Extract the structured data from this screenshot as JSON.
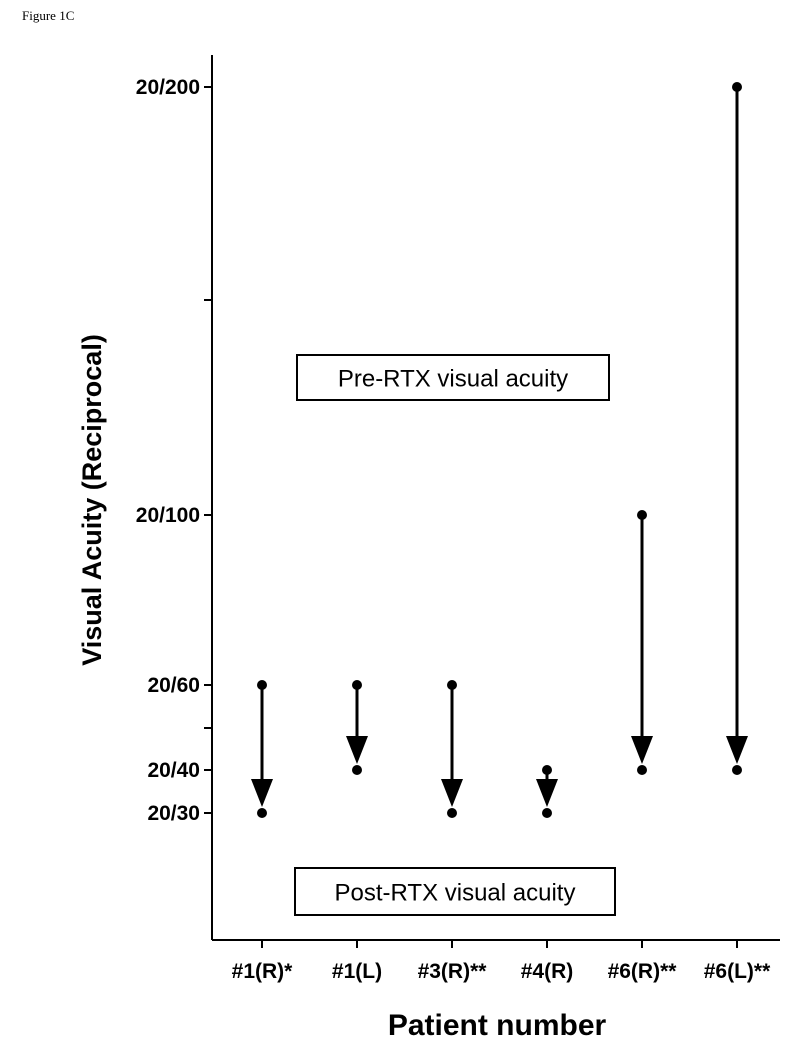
{
  "figure_label": "Figure 1C",
  "chart_data": {
    "type": "scatter",
    "xlabel": "Patient number",
    "ylabel": "Visual Acuity (Reciprocal)",
    "categories": [
      "#1(R)*",
      "#1(L)",
      "#3(R)**",
      "#4(R)",
      "#6(R)**",
      "#6(L)**"
    ],
    "series": [
      {
        "name": "Pre-RTX visual acuity",
        "values": [
          "20/60",
          "20/60",
          "20/60",
          "20/40",
          "20/100",
          "20/200"
        ]
      },
      {
        "name": "Post-RTX visual acuity",
        "values": [
          "20/30",
          "20/40",
          "20/30",
          "20/30",
          "20/40",
          "20/40"
        ]
      }
    ],
    "yticks": [
      "20/200",
      "20/100",
      "20/60",
      "20/40",
      "20/30"
    ],
    "annotations": [
      "Pre-RTX visual acuity",
      "Post-RTX visual acuity"
    ],
    "grid": false,
    "legend": "none"
  }
}
